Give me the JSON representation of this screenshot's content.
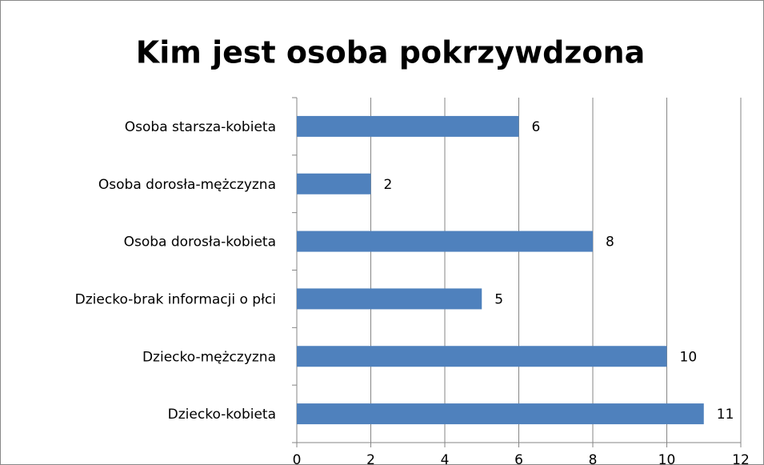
{
  "chart_data": {
    "type": "hbar",
    "title": "Kim jest osoba pokrzywdzona",
    "categories": [
      "Osoba starsza-kobieta",
      "Osoba dorosła-mężczyzna",
      "Osoba dorosła-kobieta",
      "Dziecko-brak informacji o płci",
      "Dziecko-mężczyzna",
      "Dziecko-kobieta"
    ],
    "values": [
      6,
      2,
      8,
      5,
      10,
      11
    ],
    "color": "#4f81bd",
    "xlim": [
      0,
      12
    ],
    "xticks": [
      0,
      2,
      4,
      6,
      8,
      10,
      12
    ],
    "grid": true
  }
}
